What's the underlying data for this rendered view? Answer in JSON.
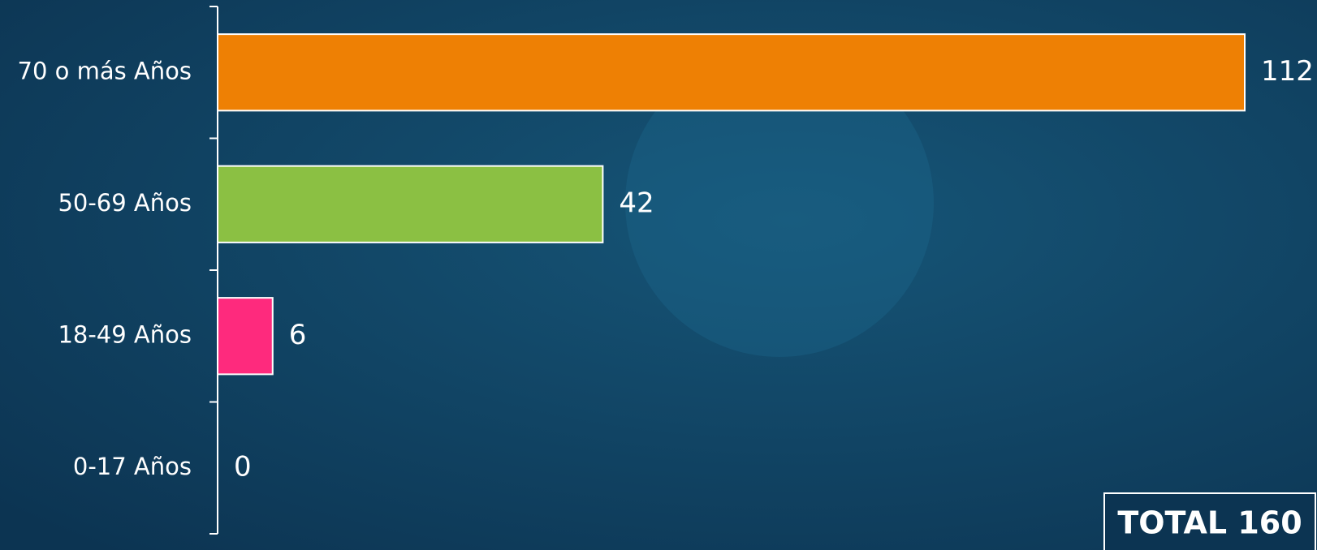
{
  "chart_data": {
    "type": "barh",
    "categories": [
      "70 o más Años",
      "50-69 Años",
      "18-49 Años",
      "0-17 Años"
    ],
    "values": [
      112,
      42,
      6,
      0
    ],
    "colors": [
      "#ee8004",
      "#8bc043",
      "#fe2a7d",
      "#ffffff"
    ],
    "xlim": [
      0,
      112
    ],
    "total_label": "TOTAL 160"
  }
}
